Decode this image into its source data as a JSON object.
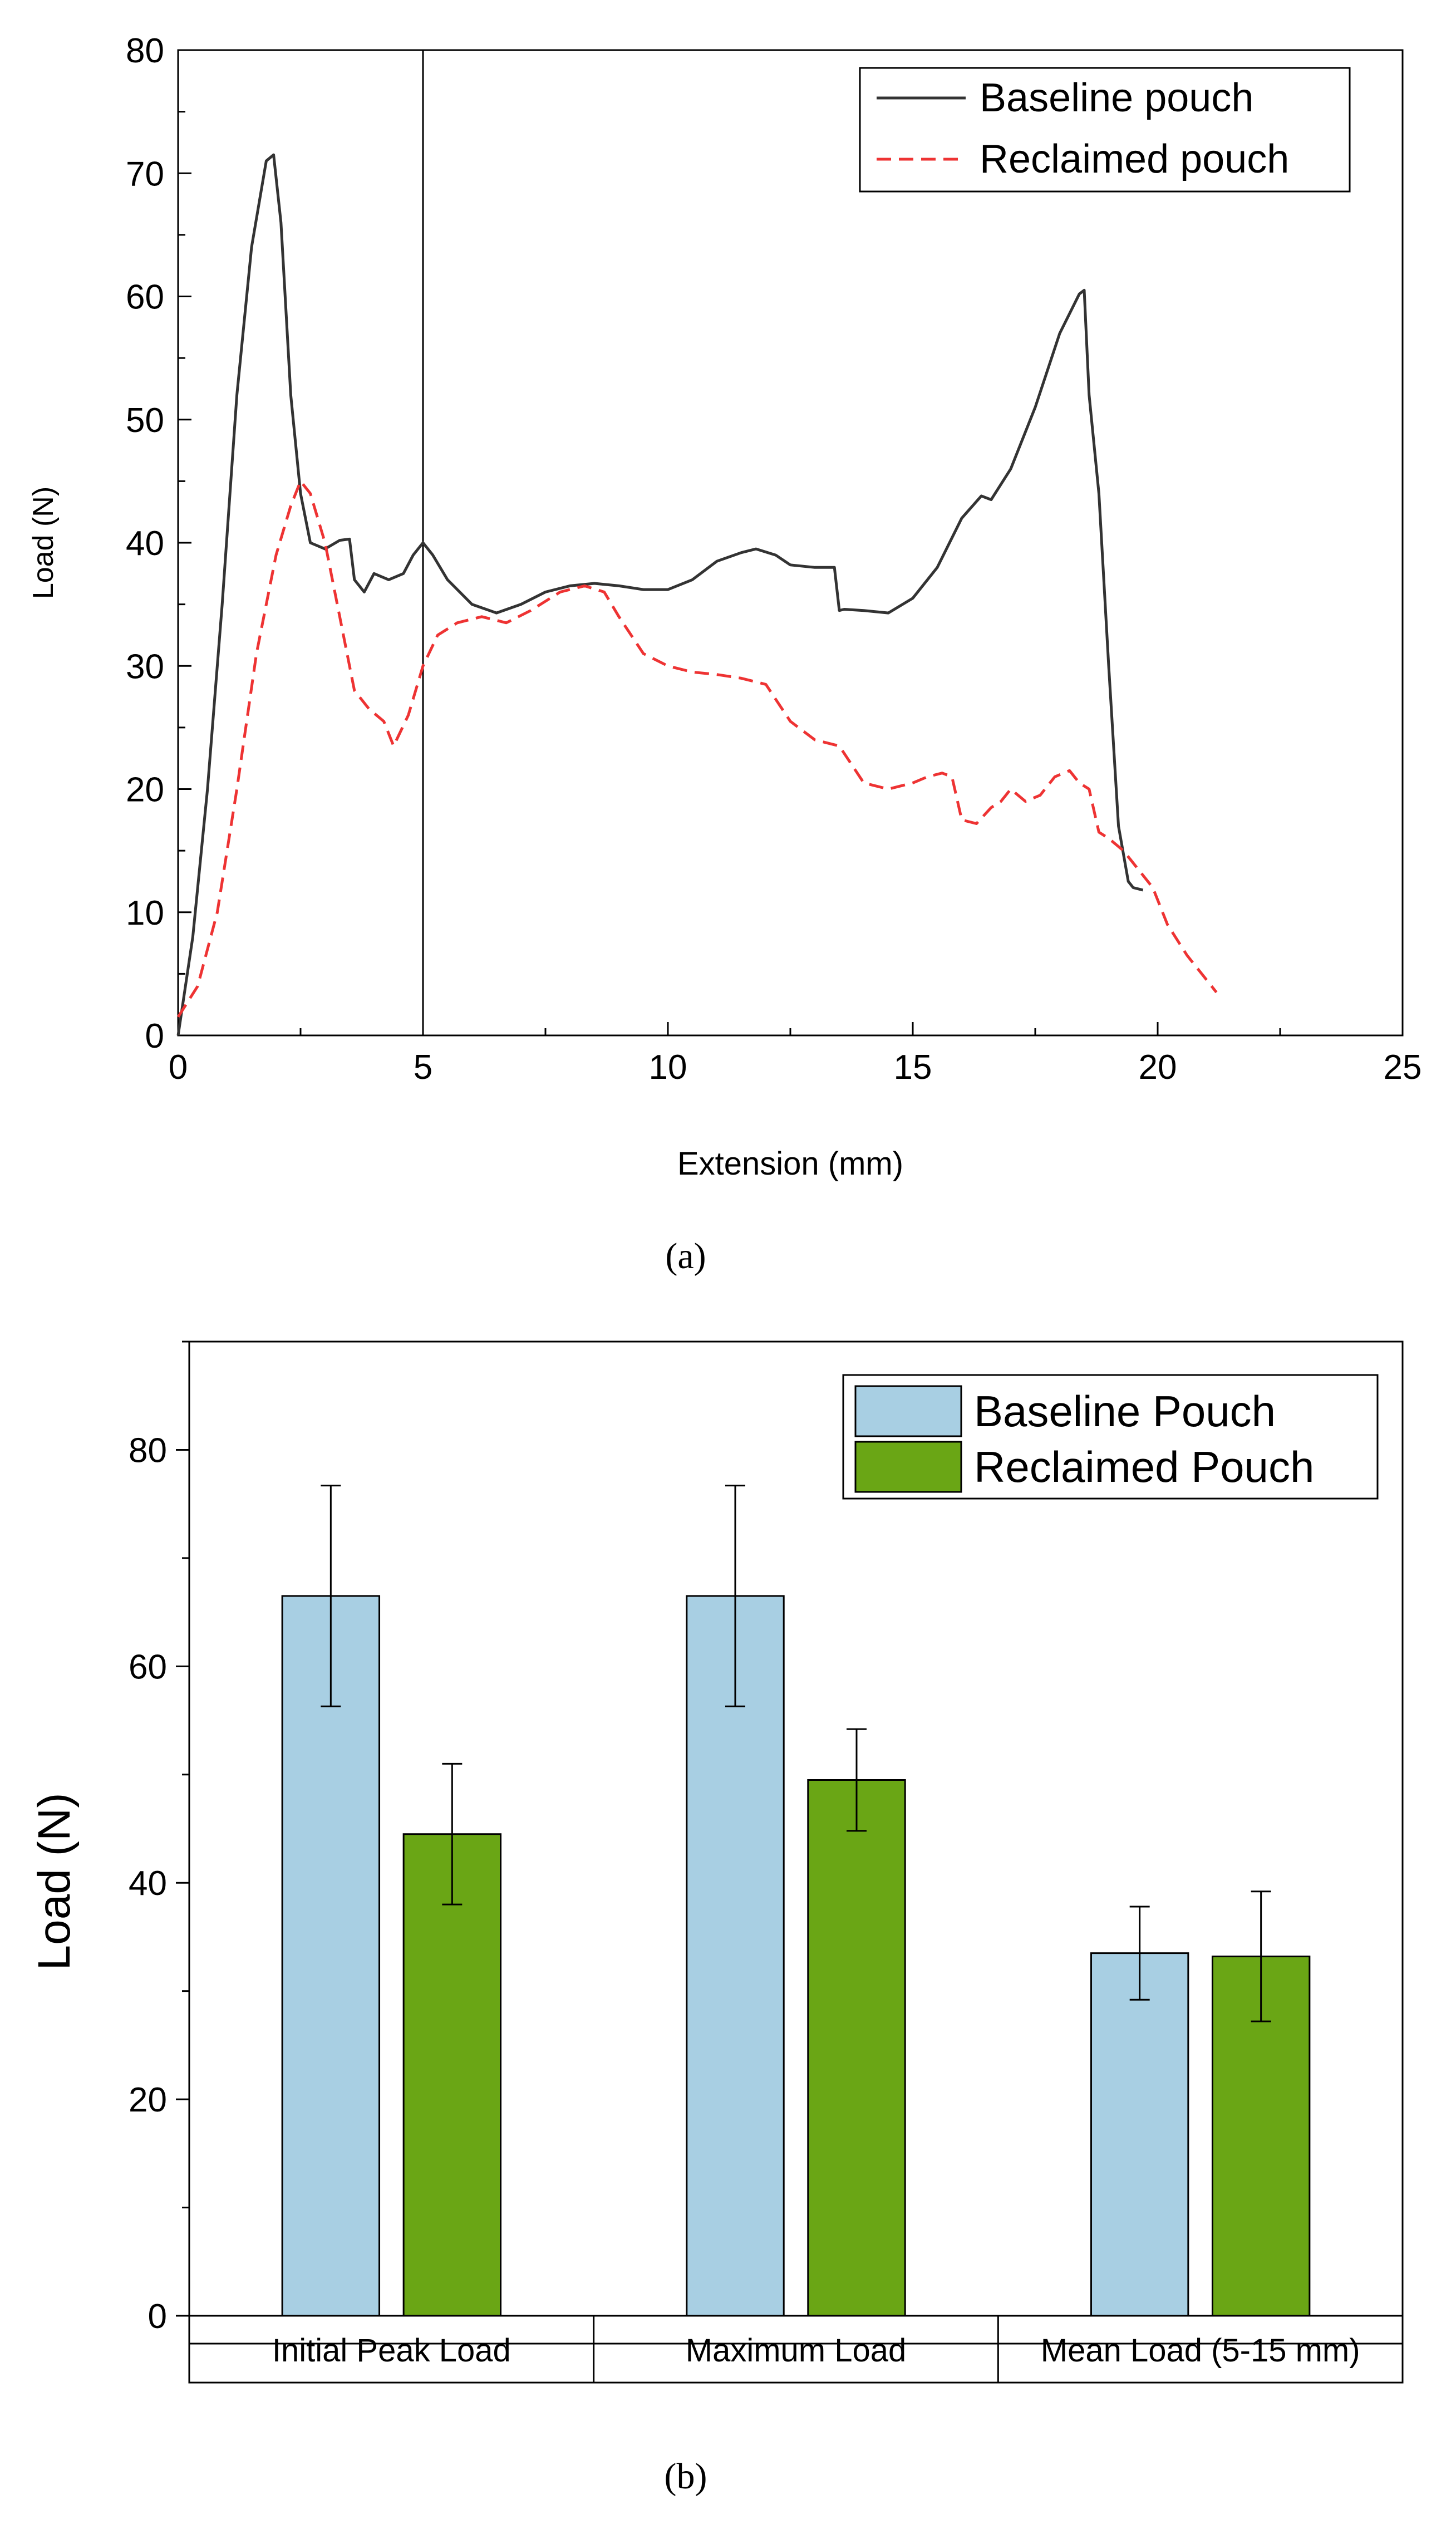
{
  "chart_data": [
    {
      "type": "line",
      "panel_label": "(a)",
      "xlabel": "Extension (mm)",
      "ylabel": "Load (N)",
      "xlim": [
        0,
        25
      ],
      "ylim": [
        0,
        80
      ],
      "xticks": [
        0,
        5,
        10,
        15,
        20,
        25
      ],
      "yticks": [
        0,
        10,
        20,
        30,
        40,
        50,
        60,
        70,
        80
      ],
      "reference_line_x": 5,
      "legend_position": "top-right",
      "series": [
        {
          "name": "Baseline pouch",
          "color": "#333333",
          "style": "solid",
          "x": [
            0,
            0.3,
            0.6,
            0.9,
            1.2,
            1.5,
            1.8,
            1.95,
            2.1,
            2.3,
            2.5,
            2.7,
            3.0,
            3.3,
            3.5,
            3.6,
            3.7,
            3.8,
            4.0,
            4.3,
            4.6,
            4.8,
            5.0,
            5.2,
            5.5,
            6.0,
            6.5,
            7.0,
            7.5,
            8.0,
            8.5,
            9.0,
            9.5,
            10.0,
            10.5,
            11.0,
            11.5,
            11.8,
            12.2,
            12.5,
            13.0,
            13.4,
            13.5,
            13.6,
            14.0,
            14.5,
            15.0,
            15.5,
            16.0,
            16.4,
            16.6,
            17.0,
            17.5,
            18.0,
            18.4,
            18.5,
            18.6,
            18.8,
            19.0,
            19.2,
            19.4,
            19.5,
            19.7
          ],
          "y": [
            0,
            8,
            20,
            35,
            52,
            64,
            71,
            71.5,
            66,
            52,
            44,
            40,
            39.5,
            40.2,
            40.3,
            37,
            36.5,
            36,
            37.5,
            37,
            37.5,
            39,
            40,
            39,
            37,
            35,
            34.3,
            35,
            36,
            36.5,
            36.7,
            36.5,
            36.2,
            36.2,
            37,
            38.5,
            39.2,
            39.5,
            39,
            38.2,
            38,
            38,
            34.5,
            34.6,
            34.5,
            34.3,
            35.5,
            38,
            42,
            43.8,
            43.5,
            46,
            51,
            57,
            60.2,
            60.5,
            52,
            44,
            30,
            17,
            12.5,
            12,
            11.8
          ]
        },
        {
          "name": "Reclaimed pouch",
          "color": "#ee3333",
          "style": "dashed",
          "x": [
            0,
            0.4,
            0.8,
            1.2,
            1.6,
            2.0,
            2.3,
            2.5,
            2.7,
            3.0,
            3.3,
            3.6,
            3.9,
            4.2,
            4.4,
            4.7,
            5.0,
            5.3,
            5.7,
            6.2,
            6.7,
            7.2,
            7.8,
            8.3,
            8.7,
            9.0,
            9.5,
            10.0,
            10.5,
            11.0,
            11.5,
            12.0,
            12.5,
            13.0,
            13.5,
            14.0,
            14.5,
            15.0,
            15.3,
            15.6,
            15.8,
            16.0,
            16.3,
            16.6,
            16.8,
            17.0,
            17.3,
            17.6,
            17.9,
            18.2,
            18.4,
            18.6,
            18.8,
            19.0,
            19.3,
            19.6,
            19.9,
            20.2,
            20.6,
            21.0,
            21.2
          ],
          "y": [
            1.5,
            4,
            10,
            20,
            31,
            39,
            43,
            45,
            44,
            40,
            34,
            28,
            26.5,
            25.5,
            23.5,
            26,
            30,
            32.5,
            33.5,
            34,
            33.5,
            34.5,
            36,
            36.5,
            36,
            34,
            31,
            30,
            29.5,
            29.3,
            29,
            28.5,
            25.5,
            24,
            23.5,
            20.5,
            20,
            20.5,
            21,
            21.3,
            21,
            17.5,
            17.2,
            18.5,
            19,
            20,
            19,
            19.5,
            21,
            21.5,
            20.5,
            20,
            16.5,
            16,
            15,
            13.5,
            12,
            9,
            6.5,
            4.5,
            3.5
          ]
        }
      ]
    },
    {
      "type": "bar",
      "panel_label": "(b)",
      "xlabel": "",
      "ylabel": "Load (N)",
      "ylim": [
        0,
        90
      ],
      "yticks": [
        0,
        20,
        40,
        60,
        80
      ],
      "legend_position": "top-right",
      "categories": [
        "Initial Peak Load",
        "Maximum Load",
        "Mean Load (5-15 mm)"
      ],
      "series": [
        {
          "name": "Baseline Pouch",
          "color": "#a8cfe3",
          "values": [
            66.5,
            66.5,
            33.5
          ],
          "errors": [
            10.2,
            10.2,
            4.3
          ]
        },
        {
          "name": "Reclaimed Pouch",
          "color": "#6aa615",
          "values": [
            44.5,
            49.5,
            33.2
          ],
          "errors": [
            6.5,
            4.7,
            6
          ]
        }
      ]
    }
  ]
}
